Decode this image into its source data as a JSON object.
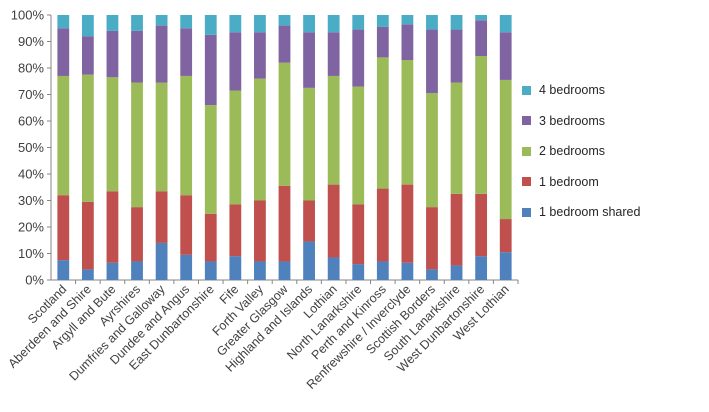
{
  "chart_data": {
    "type": "bar",
    "stacked": "percent",
    "categories": [
      "Scotland",
      "Aberdeen and Shire",
      "Argyll and Bute",
      "Ayrshires",
      "Dumfries and Galloway",
      "Dundee and Angus",
      "East Dunbartonshire",
      "Fife",
      "Forth Valley",
      "Greater Glasgow",
      "Highland and Islands",
      "Lothian",
      "North Lanarkshire",
      "Perth and Kinross",
      "Renfrewshire / Inverclyde",
      "Scottish Borders",
      "South Lanarkshire",
      "West Dunbartonshire",
      "West Lothian"
    ],
    "series": [
      {
        "name": "1 bedroom shared",
        "color": "#4f81bd",
        "values": [
          7.5,
          4,
          6.5,
          7,
          14,
          9.5,
          7,
          9,
          7,
          7,
          14.5,
          8.5,
          6,
          7,
          6.5,
          4,
          5.5,
          9,
          10.5
        ]
      },
      {
        "name": "1 bedroom",
        "color": "#c0504d",
        "values": [
          24.5,
          25.5,
          27,
          20.5,
          19.5,
          22.5,
          18,
          19.5,
          23,
          28.5,
          15.5,
          27.5,
          22.5,
          27.5,
          29.5,
          23.5,
          27,
          23.5,
          12.5
        ]
      },
      {
        "name": "2 bedrooms",
        "color": "#9bbb59",
        "values": [
          45,
          48,
          43,
          47,
          41,
          45,
          41,
          43,
          46,
          46.5,
          42.5,
          41,
          44.5,
          49.5,
          47,
          43,
          42,
          52,
          52.5
        ]
      },
      {
        "name": "3 bedrooms",
        "color": "#8064a2",
        "values": [
          18,
          14.5,
          17.5,
          19.5,
          21.5,
          18,
          26.5,
          22,
          17.5,
          14,
          21,
          16.5,
          21.5,
          11.5,
          13.5,
          24,
          20,
          13.5,
          18
        ]
      },
      {
        "name": "4 bedrooms",
        "color": "#4bacc6",
        "values": [
          5,
          8,
          6,
          6,
          4,
          5,
          7.5,
          6.5,
          6.5,
          4,
          6.5,
          6.5,
          5.5,
          4.5,
          3.5,
          5.5,
          5.5,
          2,
          6.5
        ]
      }
    ],
    "ylim": [
      0,
      100
    ],
    "y_ticks": [
      "0%",
      "10%",
      "20%",
      "30%",
      "40%",
      "50%",
      "60%",
      "70%",
      "80%",
      "90%",
      "100%"
    ],
    "title": "",
    "xlabel": "",
    "ylabel": "",
    "legend_position": "right",
    "legend_order": [
      "4 bedrooms",
      "3 bedrooms",
      "2 bedrooms",
      "1 bedroom",
      "1 bedroom shared"
    ],
    "grid": false
  }
}
